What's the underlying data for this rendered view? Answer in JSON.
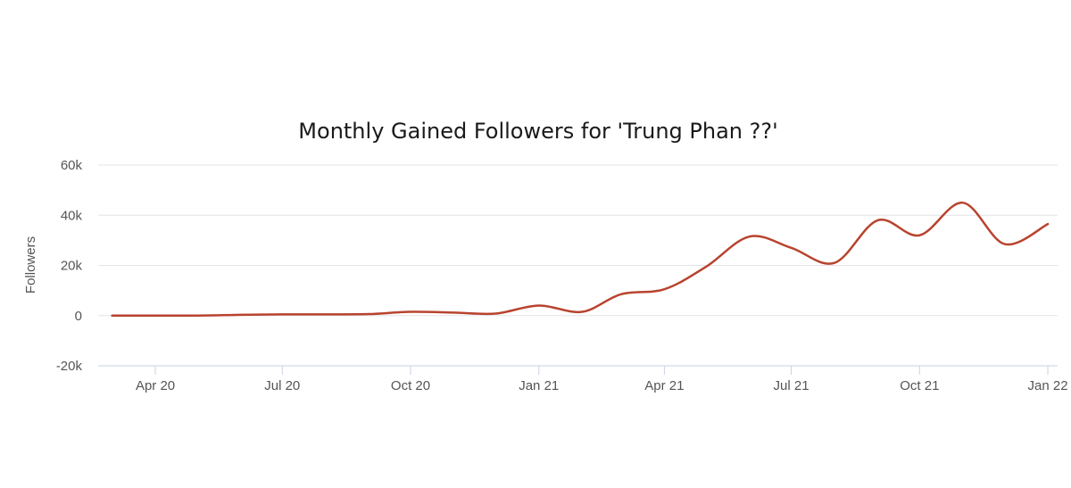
{
  "chart_data": {
    "type": "line",
    "title": "Monthly Gained Followers for 'Trung Phan ??'",
    "xlabel": "",
    "ylabel": "Followers",
    "ylim": [
      -20000,
      60000
    ],
    "yticks": [
      60000,
      40000,
      20000,
      0,
      -20000
    ],
    "ytick_labels": [
      "60k",
      "40k",
      "20k",
      "0",
      "-20k"
    ],
    "xticks": [
      "2020-04-01",
      "2020-07-01",
      "2020-10-01",
      "2021-01-01",
      "2021-04-01",
      "2021-07-01",
      "2021-10-01",
      "2022-01-01"
    ],
    "xtick_labels": [
      "Apr 20",
      "Jul 20",
      "Oct 20",
      "Jan 21",
      "Apr 21",
      "Jul 21",
      "Oct 21",
      "Jan 22"
    ],
    "xlim": [
      "2020-02-20",
      "2022-01-08"
    ],
    "grid": true,
    "color": "#b8432e",
    "x": [
      "2020-03-01",
      "2020-04-01",
      "2020-05-01",
      "2020-06-01",
      "2020-07-01",
      "2020-08-01",
      "2020-09-01",
      "2020-10-01",
      "2020-11-01",
      "2020-12-01",
      "2021-01-01",
      "2021-02-01",
      "2021-03-01",
      "2021-04-01",
      "2021-05-01",
      "2021-06-01",
      "2021-07-01",
      "2021-08-01",
      "2021-09-01",
      "2021-10-01",
      "2021-11-01",
      "2021-12-01",
      "2022-01-01"
    ],
    "series": [
      {
        "values": [
          0,
          0,
          0,
          300,
          500,
          500,
          600,
          1500,
          1200,
          800,
          4000,
          1500,
          8500,
          10500,
          19500,
          31500,
          27000,
          21000,
          38000,
          32000,
          45000,
          28500,
          36500
        ]
      }
    ]
  }
}
